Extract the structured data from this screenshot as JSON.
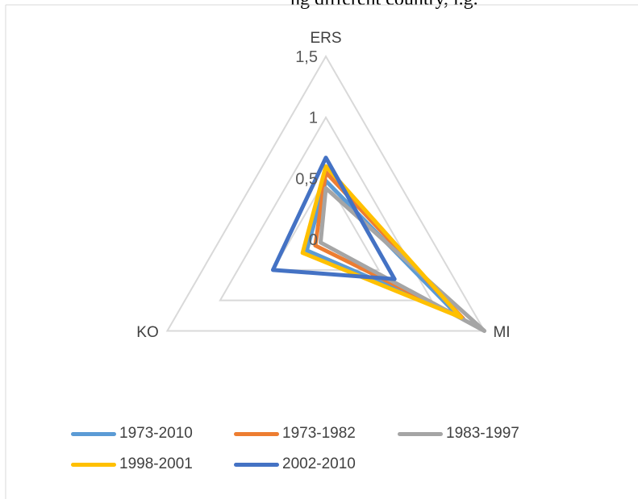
{
  "header_fragment": "ng different country, i.g. ",
  "chart_data": {
    "type": "radar",
    "axes": [
      "ERS",
      "MI",
      "KO"
    ],
    "rmax": 1.5,
    "ticks": [
      0,
      0.5,
      1,
      1.5
    ],
    "tick_labels": [
      "0",
      "0,5",
      "1",
      "1,5"
    ],
    "series": [
      {
        "name": "1973-2010",
        "color": "#5B9BD5",
        "values": [
          0.48,
          1.25,
          0.18
        ]
      },
      {
        "name": "1973-1982",
        "color": "#ED7D31",
        "values": [
          0.55,
          1.3,
          0.1
        ]
      },
      {
        "name": "1983-1997",
        "color": "#A5A5A5",
        "values": [
          0.42,
          1.5,
          0.05
        ]
      },
      {
        "name": "1998-2001",
        "color": "#FFC000",
        "values": [
          0.6,
          1.28,
          0.22
        ]
      },
      {
        "name": "2002-2010",
        "color": "#4472C4",
        "values": [
          0.67,
          0.65,
          0.5
        ]
      }
    ],
    "legend_position": "bottom"
  }
}
